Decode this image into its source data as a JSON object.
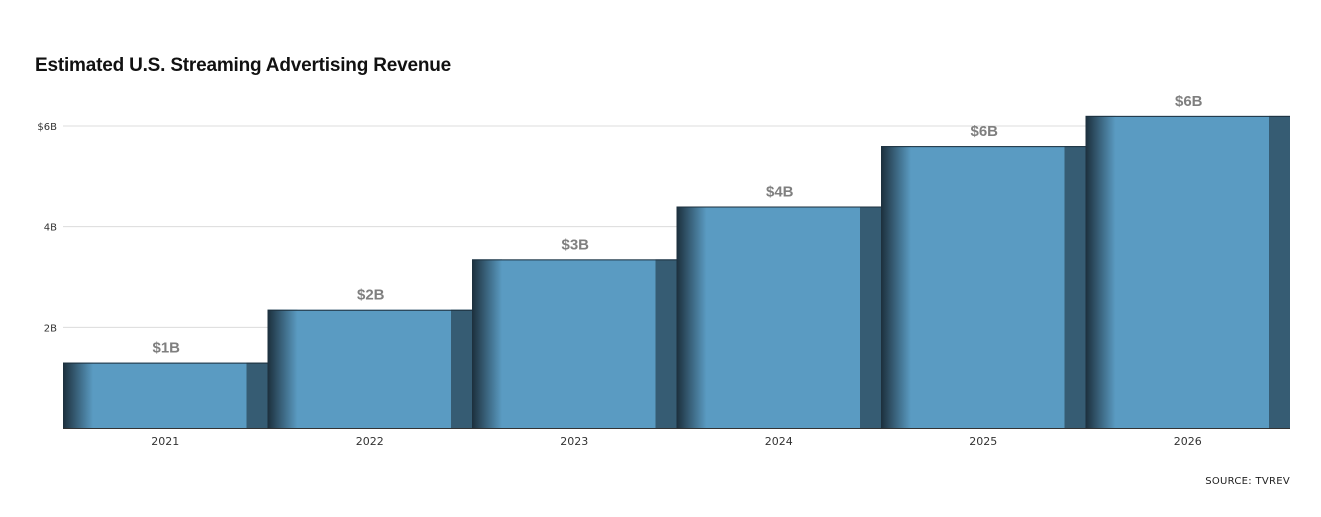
{
  "chart_data": {
    "type": "bar",
    "title": "Estimated U.S. Streaming Advertising Revenue",
    "xlabel": "",
    "ylabel": "",
    "categories": [
      "2021",
      "2022",
      "2023",
      "2024",
      "2025",
      "2026"
    ],
    "values": [
      1.3,
      2.35,
      3.35,
      4.4,
      5.6,
      6.2
    ],
    "data_labels": [
      "$1B",
      "$2B",
      "$3B",
      "$4B",
      "$6B",
      "$6B"
    ],
    "ylim": [
      0,
      6
    ],
    "yticks": [
      {
        "value": 2,
        "label": "2B"
      },
      {
        "value": 4,
        "label": "4B"
      },
      {
        "value": 6,
        "label": "$6B"
      }
    ],
    "grid": true,
    "legend": "none",
    "source": "SOURCE: TVREV",
    "colors": {
      "bar": "#5a9bc2",
      "bar_side": "#365c73",
      "bar_shadow": "#1c2f3c",
      "grid": "#dcdcdc",
      "axis": "#333333",
      "data_label": "#7f7f7f",
      "tick_label": "#333333"
    }
  }
}
